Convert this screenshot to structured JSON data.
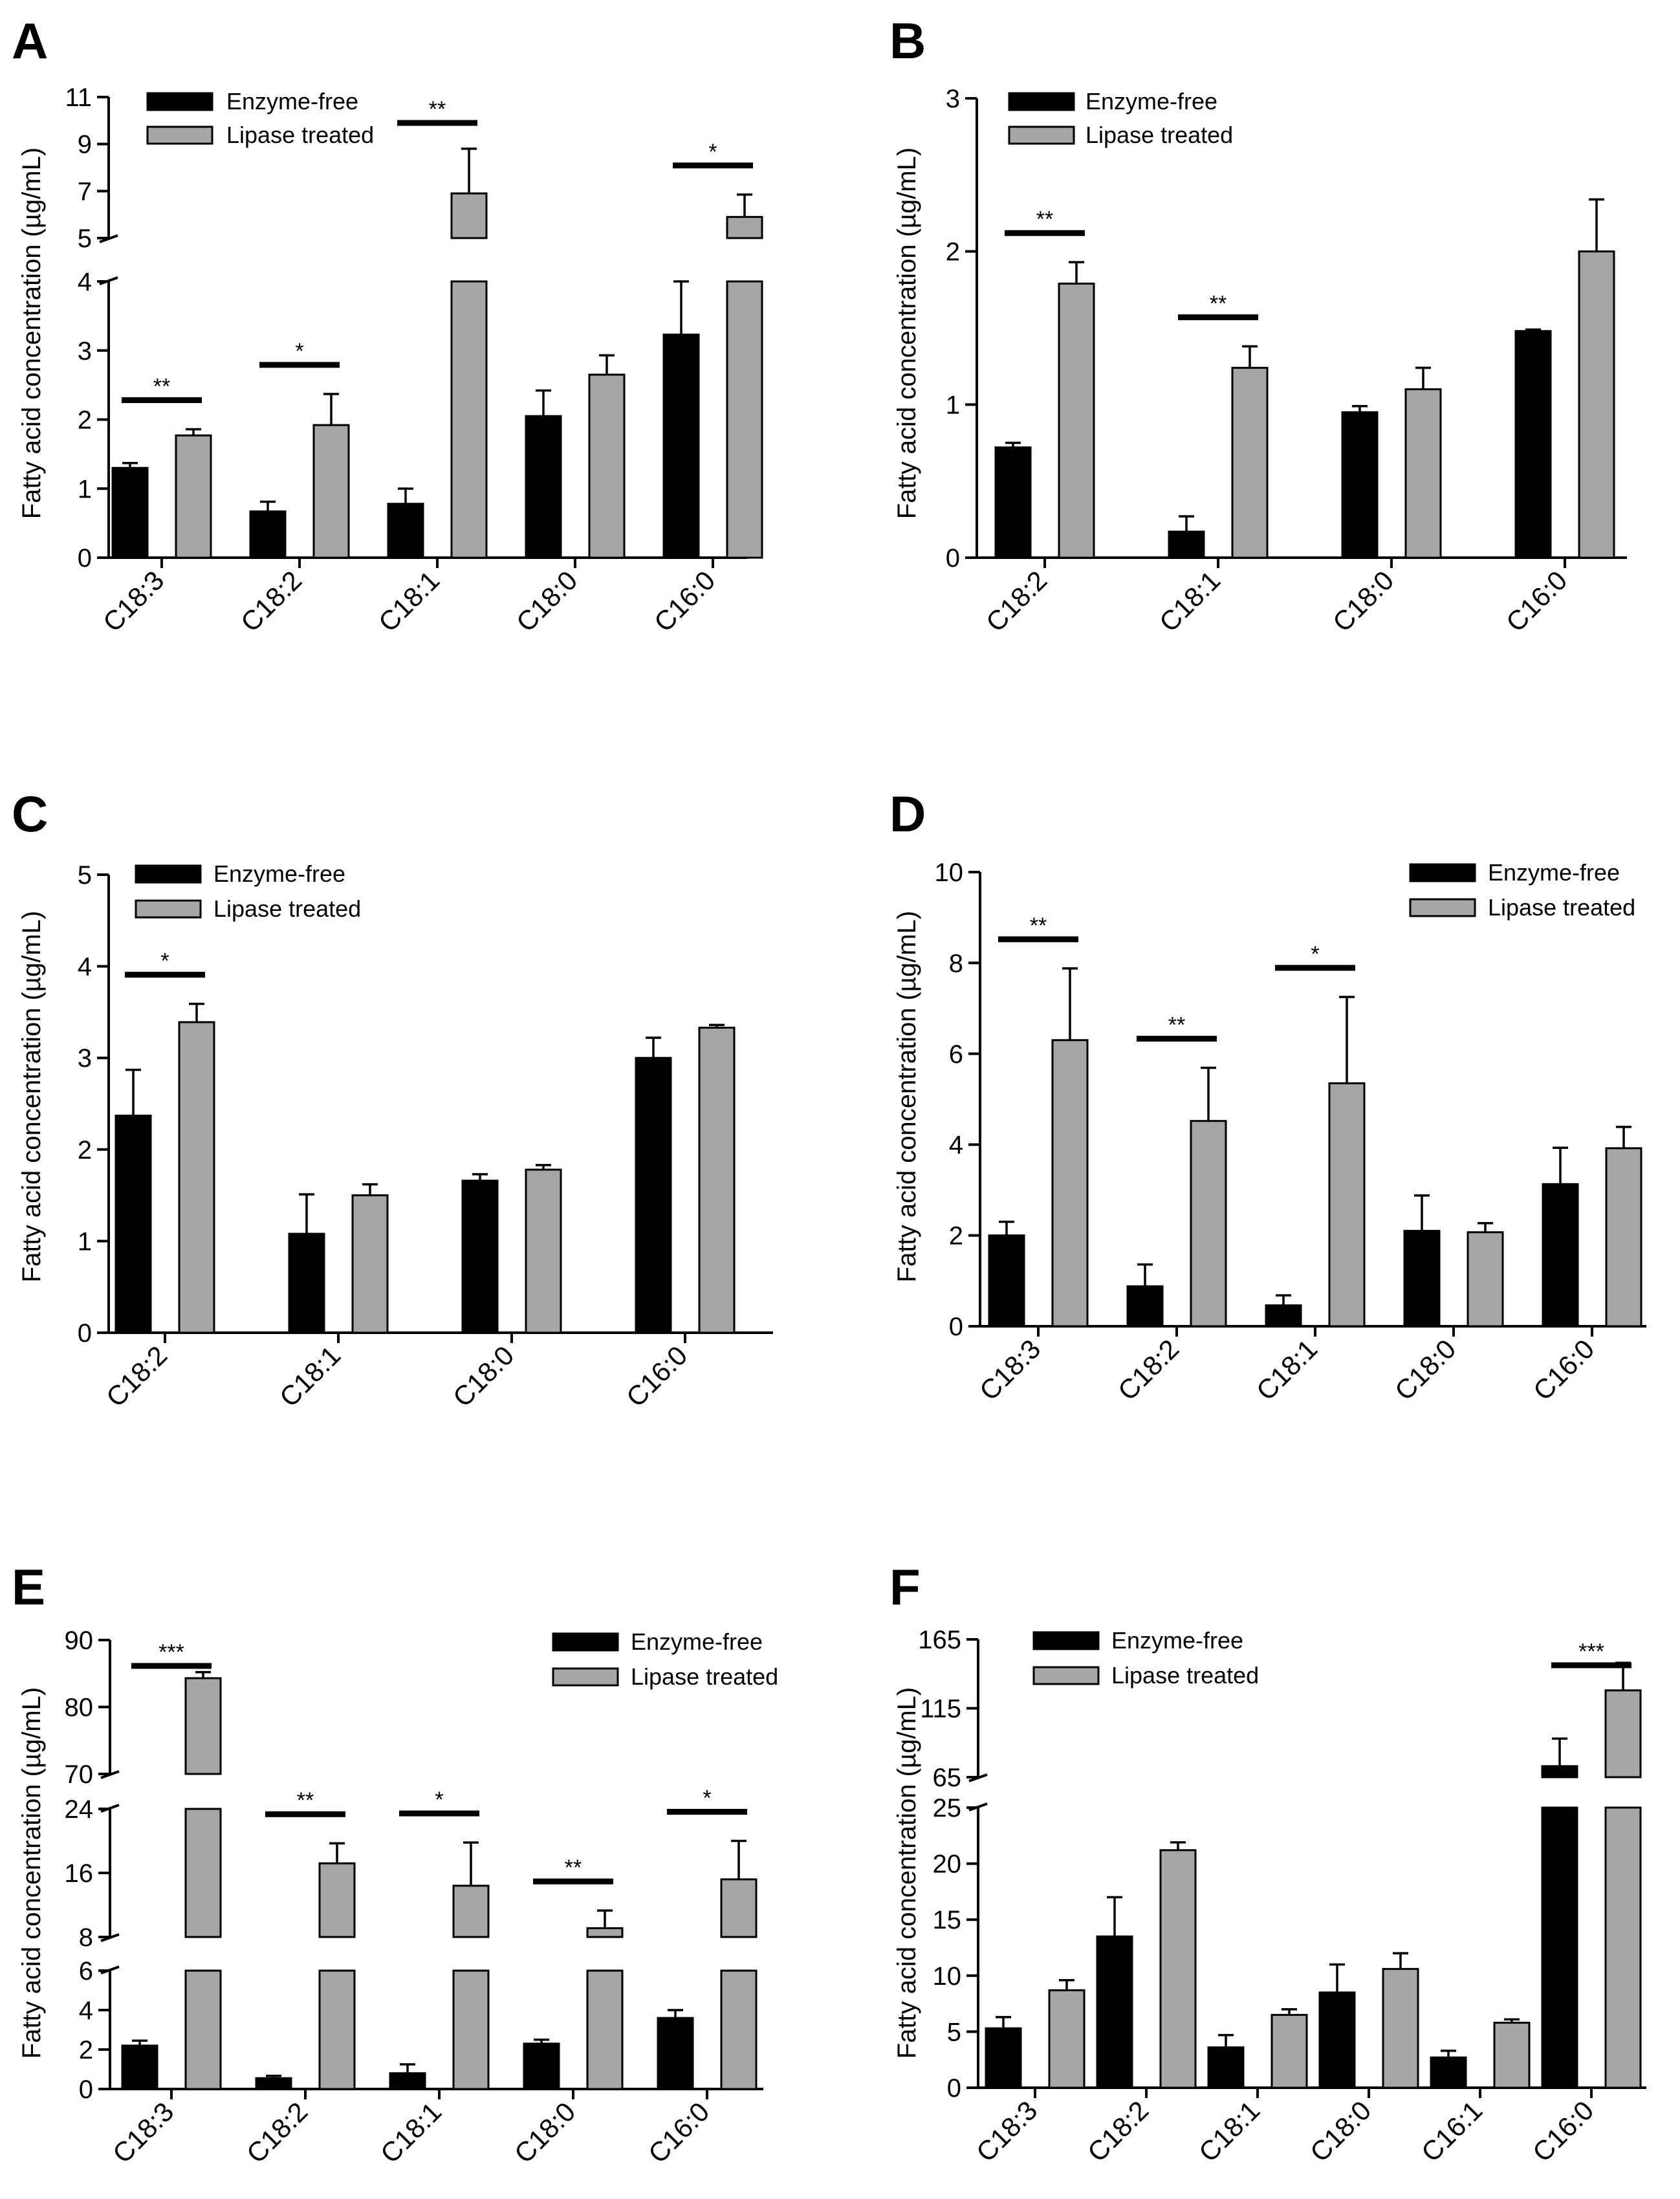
{
  "colors": {
    "enzyme_free": "#000000",
    "lipase": "#a6a6a6"
  },
  "chart_data": [
    {
      "panel": "A",
      "type": "bar",
      "ylabel": "Fatty acid concentration (µg/mL)",
      "legend": [
        "Enzyme-free",
        "Lipase treated"
      ],
      "legend_position": "top-left",
      "categories": [
        "C18:3",
        "C18:2",
        "C18:1",
        "C18:0",
        "C16:0"
      ],
      "series": [
        {
          "name": "Enzyme-free",
          "values": [
            1.3,
            0.67,
            0.78,
            2.05,
            3.23
          ],
          "errors": [
            0.07,
            0.14,
            0.22,
            0.37,
            0.77
          ]
        },
        {
          "name": "Lipase treated",
          "values": [
            1.77,
            1.92,
            6.9,
            2.65,
            5.9
          ],
          "errors": [
            0.09,
            0.45,
            1.9,
            0.28,
            0.95
          ]
        }
      ],
      "y_segments": [
        {
          "range": [
            0,
            4
          ],
          "ticks": [
            "0",
            "1",
            "2",
            "3",
            "4"
          ]
        },
        {
          "range": [
            5,
            11
          ],
          "ticks": [
            "5",
            "7",
            "9",
            "11"
          ]
        }
      ],
      "significance": [
        {
          "category": "C18:3",
          "label": "**"
        },
        {
          "category": "C18:2",
          "label": "*"
        },
        {
          "category": "C18:1",
          "label": "**"
        },
        {
          "category": "C16:0",
          "label": "*"
        }
      ]
    },
    {
      "panel": "B",
      "type": "bar",
      "ylabel": "Fatty acid concentration (µg/mL)",
      "legend": [
        "Enzyme-free",
        "Lipase treated"
      ],
      "legend_position": "top-left",
      "categories": [
        "C18:2",
        "C18:1",
        "C18:0",
        "C16:0"
      ],
      "series": [
        {
          "name": "Enzyme-free",
          "values": [
            0.72,
            0.17,
            0.95,
            1.48
          ],
          "errors": [
            0.03,
            0.1,
            0.04,
            0.01
          ]
        },
        {
          "name": "Lipase treated",
          "values": [
            1.79,
            1.24,
            1.1,
            2.0
          ],
          "errors": [
            0.14,
            0.14,
            0.14,
            0.34
          ]
        }
      ],
      "y_segments": [
        {
          "range": [
            0,
            3
          ],
          "ticks": [
            "0",
            "1",
            "2",
            "3"
          ]
        }
      ],
      "significance": [
        {
          "category": "C18:2",
          "label": "**"
        },
        {
          "category": "C18:1",
          "label": "**"
        }
      ]
    },
    {
      "panel": "C",
      "type": "bar",
      "ylabel": "Fatty acid concentration (µg/mL)",
      "legend": [
        "Enzyme-free",
        "Lipase treated"
      ],
      "legend_position": "top-left",
      "categories": [
        "C18:2",
        "C18:1",
        "C18:0",
        "C16:0"
      ],
      "series": [
        {
          "name": "Enzyme-free",
          "values": [
            2.37,
            1.08,
            1.66,
            3.0
          ],
          "errors": [
            0.5,
            0.43,
            0.07,
            0.22
          ]
        },
        {
          "name": "Lipase treated",
          "values": [
            3.39,
            1.5,
            1.78,
            3.33
          ],
          "errors": [
            0.2,
            0.12,
            0.05,
            0.03
          ]
        }
      ],
      "y_segments": [
        {
          "range": [
            0,
            5
          ],
          "ticks": [
            "0",
            "1",
            "2",
            "3",
            "4",
            "5"
          ]
        }
      ],
      "significance": [
        {
          "category": "C18:2",
          "label": "*"
        }
      ]
    },
    {
      "panel": "D",
      "type": "bar",
      "ylabel": "Fatty acid concentration (µg/mL)",
      "legend": [
        "Enzyme-free",
        "Lipase treated"
      ],
      "legend_position": "top-right",
      "categories": [
        "C18:3",
        "C18:2",
        "C18:1",
        "C18:0",
        "C16:0"
      ],
      "series": [
        {
          "name": "Enzyme-free",
          "values": [
            2.0,
            0.88,
            0.46,
            2.1,
            3.13
          ],
          "errors": [
            0.3,
            0.48,
            0.22,
            0.78,
            0.8
          ]
        },
        {
          "name": "Lipase treated",
          "values": [
            6.3,
            4.52,
            5.35,
            2.07,
            3.92
          ],
          "errors": [
            1.58,
            1.17,
            1.9,
            0.2,
            0.47
          ]
        }
      ],
      "y_segments": [
        {
          "range": [
            0,
            10
          ],
          "ticks": [
            "0",
            "2",
            "4",
            "6",
            "8",
            "10"
          ]
        }
      ],
      "significance": [
        {
          "category": "C18:3",
          "label": "**"
        },
        {
          "category": "C18:2",
          "label": "**"
        },
        {
          "category": "C18:1",
          "label": "*"
        }
      ]
    },
    {
      "panel": "E",
      "type": "bar",
      "ylabel": "Fatty acid concentration (µg/mL)",
      "legend": [
        "Enzyme-free",
        "Lipase treated"
      ],
      "legend_position": "top-right",
      "categories": [
        "C18:3",
        "C18:2",
        "C18:1",
        "C18:0",
        "C16:0"
      ],
      "series": [
        {
          "name": "Enzyme-free",
          "values": [
            2.2,
            0.55,
            0.8,
            2.3,
            3.6
          ],
          "errors": [
            0.25,
            0.12,
            0.45,
            0.2,
            0.4
          ]
        },
        {
          "name": "Lipase treated",
          "values": [
            84.3,
            17.2,
            14.4,
            9.1,
            15.2
          ],
          "errors": [
            0.9,
            2.5,
            5.4,
            2.2,
            4.8
          ]
        }
      ],
      "y_segments": [
        {
          "range": [
            0,
            6
          ],
          "ticks": [
            "0",
            "2",
            "4",
            "6"
          ]
        },
        {
          "range": [
            8,
            24
          ],
          "ticks": [
            "8",
            "16",
            "24"
          ]
        },
        {
          "range": [
            70,
            90
          ],
          "ticks": [
            "70",
            "80",
            "90"
          ]
        }
      ],
      "significance": [
        {
          "category": "C18:3",
          "label": "***"
        },
        {
          "category": "C18:2",
          "label": "**"
        },
        {
          "category": "C18:1",
          "label": "*"
        },
        {
          "category": "C18:0",
          "label": "**"
        },
        {
          "category": "C16:0",
          "label": "*"
        }
      ]
    },
    {
      "panel": "F",
      "type": "bar",
      "ylabel": "Fatty acid concentration (µg/mL)",
      "legend": [
        "Enzyme-free",
        "Lipase treated"
      ],
      "legend_position": "top-left",
      "categories": [
        "C18:3",
        "C18:2",
        "C18:1",
        "C18:0",
        "C16:1",
        "C16:0"
      ],
      "series": [
        {
          "name": "Enzyme-free",
          "values": [
            5.3,
            13.5,
            3.6,
            8.5,
            2.7,
            73
          ],
          "errors": [
            1.0,
            3.5,
            1.1,
            2.5,
            0.6,
            20
          ]
        },
        {
          "name": "Lipase treated",
          "values": [
            8.7,
            21.2,
            6.5,
            10.6,
            5.8,
            128
          ],
          "errors": [
            0.9,
            0.7,
            0.5,
            1.4,
            0.3,
            20
          ]
        }
      ],
      "y_segments": [
        {
          "range": [
            0,
            25
          ],
          "ticks": [
            "0",
            "5",
            "10",
            "15",
            "20",
            "25"
          ]
        },
        {
          "range": [
            65,
            165
          ],
          "ticks": [
            "65",
            "115",
            "165"
          ]
        }
      ],
      "significance": [
        {
          "category": "C16:0",
          "label": "***"
        }
      ]
    }
  ]
}
